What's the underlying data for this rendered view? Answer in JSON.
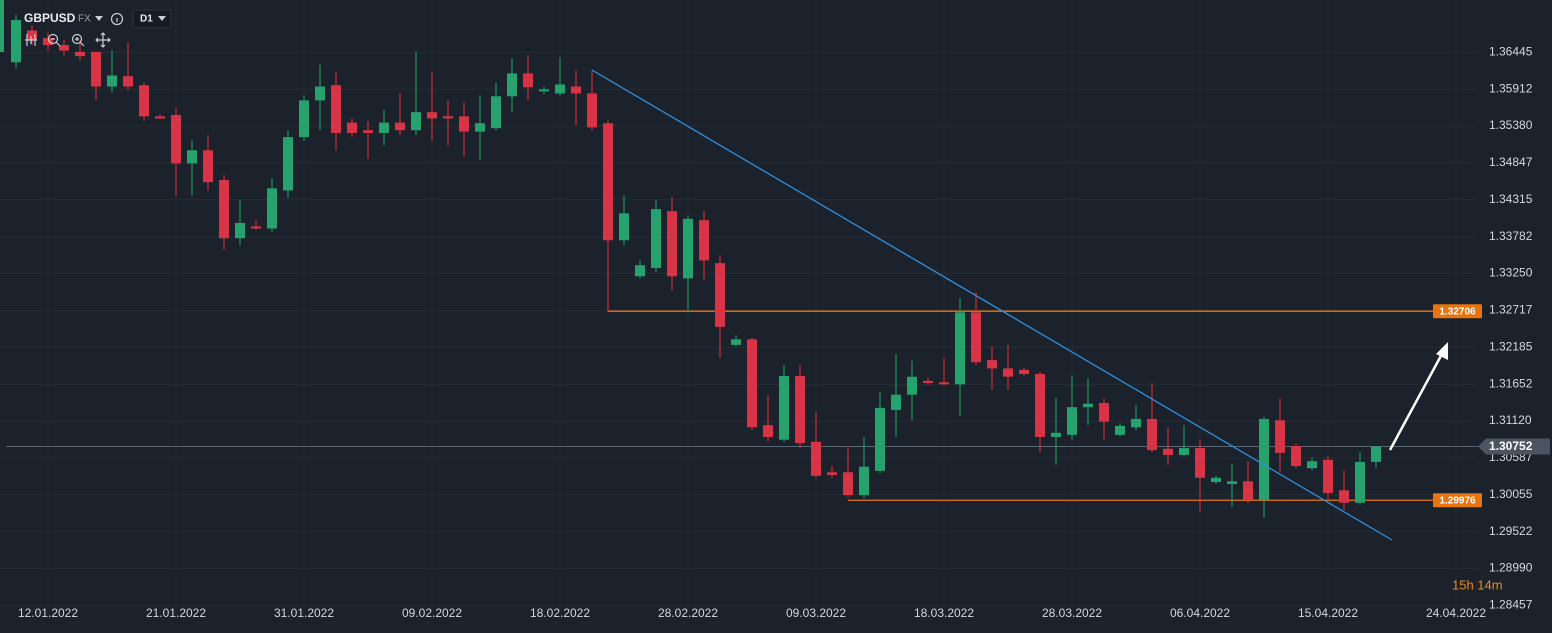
{
  "chart_data": {
    "type": "candlestick",
    "symbol": "GBPUSD",
    "market": "FX",
    "timeframe": "D1",
    "countdown": "15h 14m",
    "categories": [
      null,
      null,
      "12.01.2022",
      null,
      null,
      null,
      null,
      null,
      null,
      null,
      "21.01.2022",
      null,
      null,
      null,
      null,
      null,
      null,
      null,
      "31.01.2022",
      null,
      null,
      null,
      null,
      null,
      null,
      null,
      "09.02.2022",
      null,
      null,
      null,
      null,
      null,
      null,
      null,
      "18.02.2022",
      null,
      null,
      null,
      null,
      null,
      null,
      null,
      "28.02.2022",
      null,
      null,
      null,
      null,
      null,
      null,
      null,
      "09.03.2022",
      null,
      null,
      null,
      null,
      null,
      null,
      null,
      "18.03.2022",
      null,
      null,
      null,
      null,
      null,
      null,
      null,
      "28.03.2022",
      null,
      null,
      null,
      null,
      null,
      null,
      null,
      "06.04.2022",
      null,
      null,
      null,
      null,
      null,
      null,
      null,
      "15.04.2022",
      null,
      null,
      null,
      null,
      null,
      null,
      null,
      "24.04.2022"
    ],
    "open": [
      1.363,
      1.3676,
      1.3665,
      1.3655,
      1.3645,
      1.3645,
      1.3595,
      1.361,
      1.3597,
      1.3552,
      1.3554,
      1.3484,
      1.3503,
      1.346,
      1.3376,
      1.3393,
      1.339,
      1.3445,
      1.3522,
      1.3575,
      1.3597,
      1.3543,
      1.3532,
      1.3528,
      1.3543,
      1.3532,
      1.3558,
      1.3552,
      1.3552,
      1.353,
      1.3535,
      1.3581,
      1.3614,
      1.3588,
      1.3585,
      1.3595,
      1.3585,
      1.3542,
      1.3373,
      1.3321,
      1.3333,
      1.3415,
      1.3318,
      1.3402,
      1.334,
      1.3222,
      1.323,
      1.3106,
      1.3085,
      1.3177,
      1.3082,
      1.3038,
      1.3038,
      1.3005,
      1.304,
      1.3128,
      1.315,
      1.317,
      1.3168,
      1.3165,
      1.3269,
      1.32,
      1.3188,
      1.3186,
      1.318,
      1.3089,
      1.3092,
      1.3132,
      1.3138,
      1.3092,
      1.3103,
      1.3115,
      1.3072,
      1.3063,
      1.3073,
      1.3024,
      1.3021,
      1.3025,
      1.2998,
      1.3113,
      1.3076,
      1.3044,
      1.3056,
      1.3012,
      1.2994,
      1.3053,
      null,
      null,
      null,
      null,
      null
    ],
    "high": [
      1.3699,
      1.3683,
      1.3673,
      1.3662,
      1.3662,
      1.3645,
      1.3647,
      1.3659,
      1.3601,
      1.3555,
      1.3564,
      1.3517,
      1.3525,
      1.3467,
      1.3431,
      1.3402,
      1.3463,
      1.3532,
      1.3582,
      1.3627,
      1.3616,
      1.3549,
      1.3546,
      1.3561,
      1.3585,
      1.3645,
      1.3616,
      1.3575,
      1.3572,
      1.3582,
      1.3601,
      1.3636,
      1.364,
      1.3595,
      1.3637,
      1.3618,
      1.3618,
      1.3546,
      1.3438,
      1.3344,
      1.3431,
      1.3435,
      1.3409,
      1.3416,
      1.3352,
      1.3236,
      1.3232,
      1.315,
      1.3193,
      1.3193,
      1.3124,
      1.3047,
      1.3076,
      1.3089,
      1.3154,
      1.3209,
      1.3199,
      1.3174,
      1.3203,
      1.329,
      1.3298,
      1.322,
      1.3222,
      1.3188,
      1.3183,
      1.3145,
      1.3178,
      1.3174,
      1.3145,
      1.3109,
      1.3135,
      1.3167,
      1.3103,
      1.3106,
      1.3085,
      1.3033,
      1.3051,
      1.3054,
      1.3118,
      1.3145,
      1.3079,
      1.3059,
      1.3061,
      1.3041,
      1.3067,
      1.3076,
      null,
      null,
      null,
      null,
      null
    ],
    "low": [
      1.3621,
      1.3655,
      1.3647,
      1.364,
      1.3633,
      1.3575,
      1.3587,
      1.359,
      1.3546,
      1.3548,
      1.3438,
      1.3438,
      1.3445,
      1.3359,
      1.3366,
      1.3388,
      1.3385,
      1.3434,
      1.3517,
      1.3532,
      1.3503,
      1.3522,
      1.3491,
      1.351,
      1.3525,
      1.3525,
      1.3517,
      1.351,
      1.3494,
      1.3489,
      1.3532,
      1.3558,
      1.3575,
      1.3584,
      1.3582,
      1.3539,
      1.3532,
      1.3269,
      1.3366,
      1.3318,
      1.3327,
      1.3301,
      1.3269,
      1.3316,
      1.3203,
      1.322,
      1.3099,
      1.3082,
      1.3082,
      1.3073,
      1.303,
      1.303,
      1.3001,
      1.3001,
      1.3037,
      1.3089,
      1.3113,
      1.3164,
      1.3164,
      1.3119,
      1.3193,
      1.3157,
      1.3157,
      1.3177,
      1.3067,
      1.3049,
      1.3085,
      1.3106,
      1.3085,
      1.309,
      1.3099,
      1.3067,
      1.3049,
      1.3061,
      1.2981,
      1.3021,
      1.2988,
      1.2994,
      1.2972,
      1.3038,
      1.3044,
      1.3041,
      1.2998,
      1.2984,
      1.2991,
      1.3044,
      null,
      null,
      null,
      null,
      null
    ],
    "close": [
      1.3691,
      1.3662,
      1.3655,
      1.3647,
      1.3639,
      1.3595,
      1.3611,
      1.3595,
      1.3552,
      1.3549,
      1.3484,
      1.3503,
      1.3457,
      1.3376,
      1.3398,
      1.339,
      1.3448,
      1.3522,
      1.3575,
      1.3595,
      1.3528,
      1.3528,
      1.3528,
      1.3543,
      1.3532,
      1.3558,
      1.3549,
      1.3549,
      1.353,
      1.3542,
      1.3581,
      1.3614,
      1.3594,
      1.3591,
      1.3598,
      1.3585,
      1.3536,
      1.3373,
      1.3412,
      1.3337,
      1.3418,
      1.3321,
      1.3404,
      1.3344,
      1.3248,
      1.323,
      1.3103,
      1.3089,
      1.3177,
      1.308,
      1.3033,
      1.3034,
      1.3005,
      1.3046,
      1.3131,
      1.315,
      1.3176,
      1.3167,
      1.3165,
      1.3269,
      1.3197,
      1.3188,
      1.3176,
      1.318,
      1.3089,
      1.3095,
      1.3132,
      1.3137,
      1.3111,
      1.3105,
      1.3115,
      1.307,
      1.3063,
      1.3073,
      1.303,
      1.303,
      1.3025,
      1.2998,
      1.3115,
      1.3066,
      1.3047,
      1.3054,
      1.3008,
      1.2994,
      1.3053,
      1.30752,
      null,
      null,
      null,
      null,
      null
    ],
    "up_color": "#26a26f",
    "down_color": "#d93445",
    "ylim": [
      1.2842,
      1.372
    ],
    "yticks": [
      1.36445,
      1.35912,
      {
        "value": 1.3538,
        "label": "1.35380"
      },
      1.34847,
      1.34315,
      1.33782,
      {
        "value": 1.3325,
        "label": "1.33250"
      },
      1.32717,
      1.32185,
      1.31652,
      {
        "value": 1.3112,
        "label": "1.31120"
      },
      1.30587,
      1.30055,
      1.29522,
      {
        "value": 1.2899,
        "label": "1.28990"
      },
      1.28457
    ],
    "grid": true,
    "levels": [
      1.32706,
      1.29976
    ],
    "level_color": "#e8740f",
    "current_price": 1.30752
  }
}
